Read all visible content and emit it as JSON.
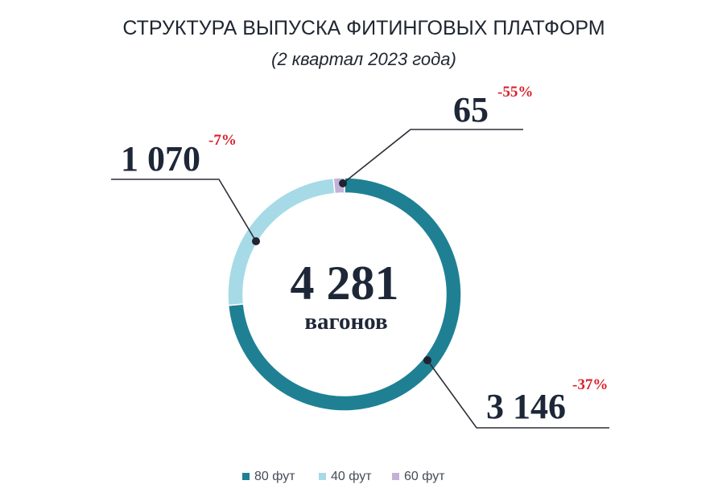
{
  "chart_data": {
    "type": "pie",
    "title": "СТРУКТУРА ВЫПУСКА ФИТИНГОВЫХ ПЛАТФОРМ",
    "subtitle": "(2 квартал 2023 года)",
    "center": {
      "total": "4 281",
      "unit": "вагонов"
    },
    "categories": [
      "80 фут",
      "40 фут",
      "60 фут"
    ],
    "values": [
      3146,
      1070,
      65
    ],
    "value_labels": [
      "3 146",
      "1 070",
      "65"
    ],
    "change_labels": [
      "-37%",
      "-7%",
      "-55%"
    ],
    "colors": [
      "#1f8094",
      "#a6dae6",
      "#c3b2d6"
    ],
    "change_color": "#d8202b",
    "legend_position": "bottom"
  }
}
